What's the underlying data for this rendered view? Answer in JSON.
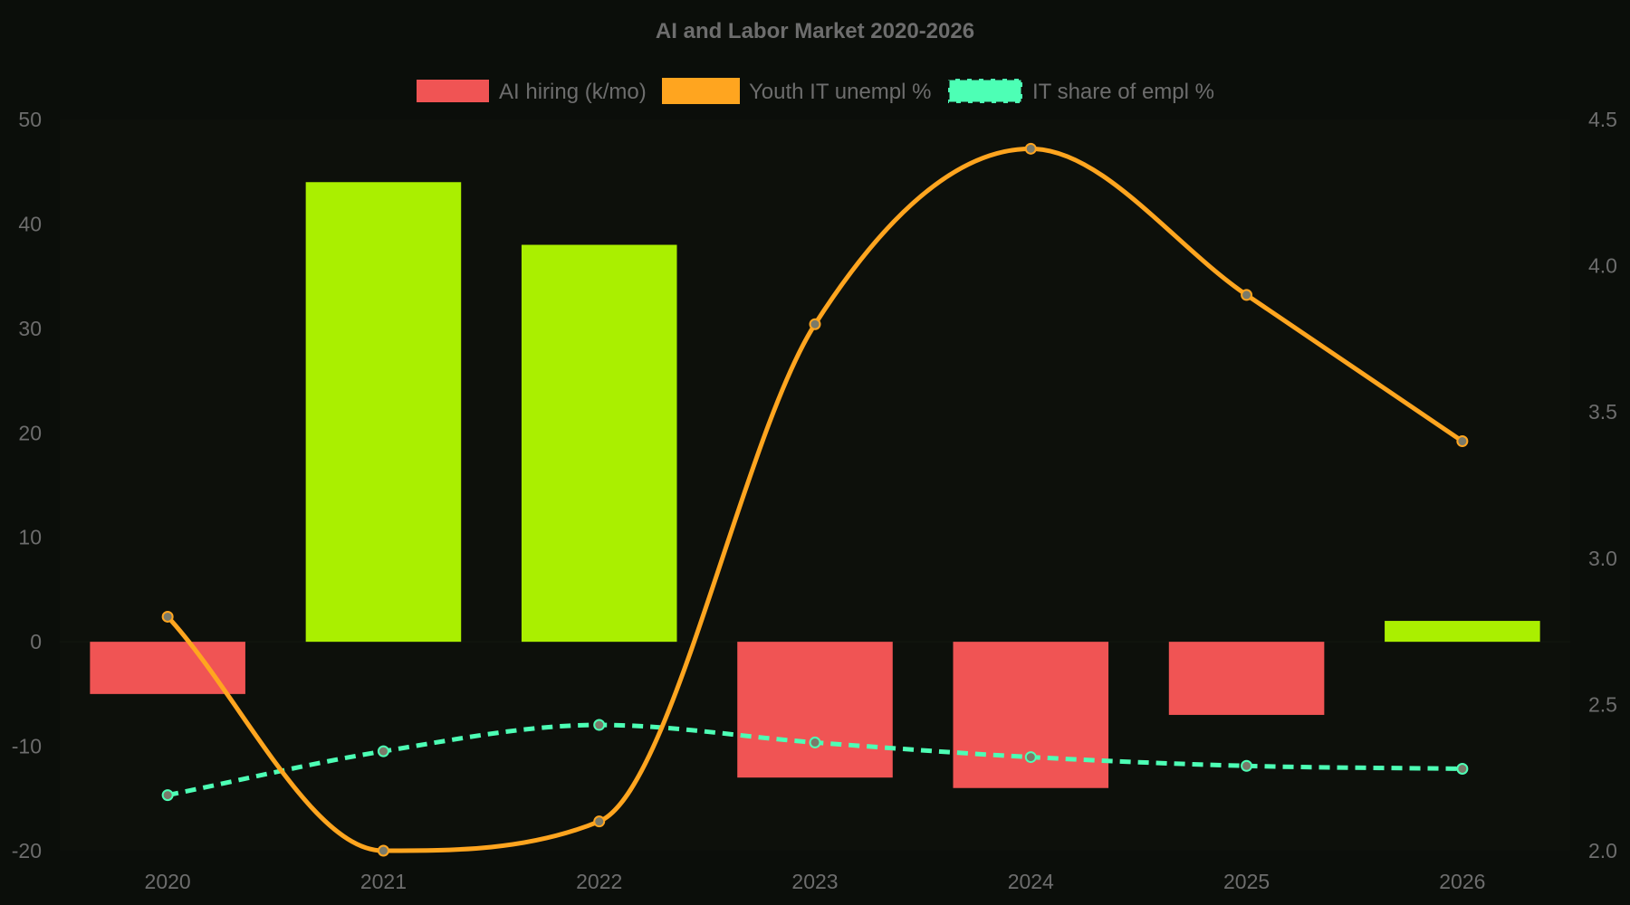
{
  "chart_data": {
    "type": "bar",
    "title": "AI and Labor Market 2020-2026",
    "categories": [
      "2020",
      "2021",
      "2022",
      "2023",
      "2024",
      "2025",
      "2026"
    ],
    "y_left": {
      "min": -20,
      "max": 50,
      "ticks": [
        "50",
        "40",
        "30",
        "20",
        "10",
        "0",
        "-10",
        "-20"
      ]
    },
    "y_right": {
      "min": 2.0,
      "max": 4.5,
      "ticks": [
        "4.5",
        "4.0",
        "3.5",
        "3.0",
        "2.5",
        "2.0"
      ]
    },
    "legend_position": "top-center",
    "series": [
      {
        "name": "AI hiring (k/mo)",
        "kind": "bar",
        "axis": "left",
        "values": [
          -5,
          44,
          38,
          -13,
          -14,
          -7,
          2
        ],
        "color_positive": "#aaef00",
        "color_negative": "#f05454"
      },
      {
        "name": "Youth IT unempl %",
        "kind": "line",
        "axis": "right",
        "values": [
          2.8,
          2.0,
          2.1,
          3.8,
          4.4,
          3.9,
          3.4
        ],
        "color": "#ffa51f",
        "style": "solid"
      },
      {
        "name": "IT share of empl %",
        "kind": "line",
        "axis": "right",
        "values": [
          2.19,
          2.34,
          2.43,
          2.37,
          2.32,
          2.29,
          2.28
        ],
        "color": "#4dffb5",
        "style": "dashed"
      }
    ]
  }
}
